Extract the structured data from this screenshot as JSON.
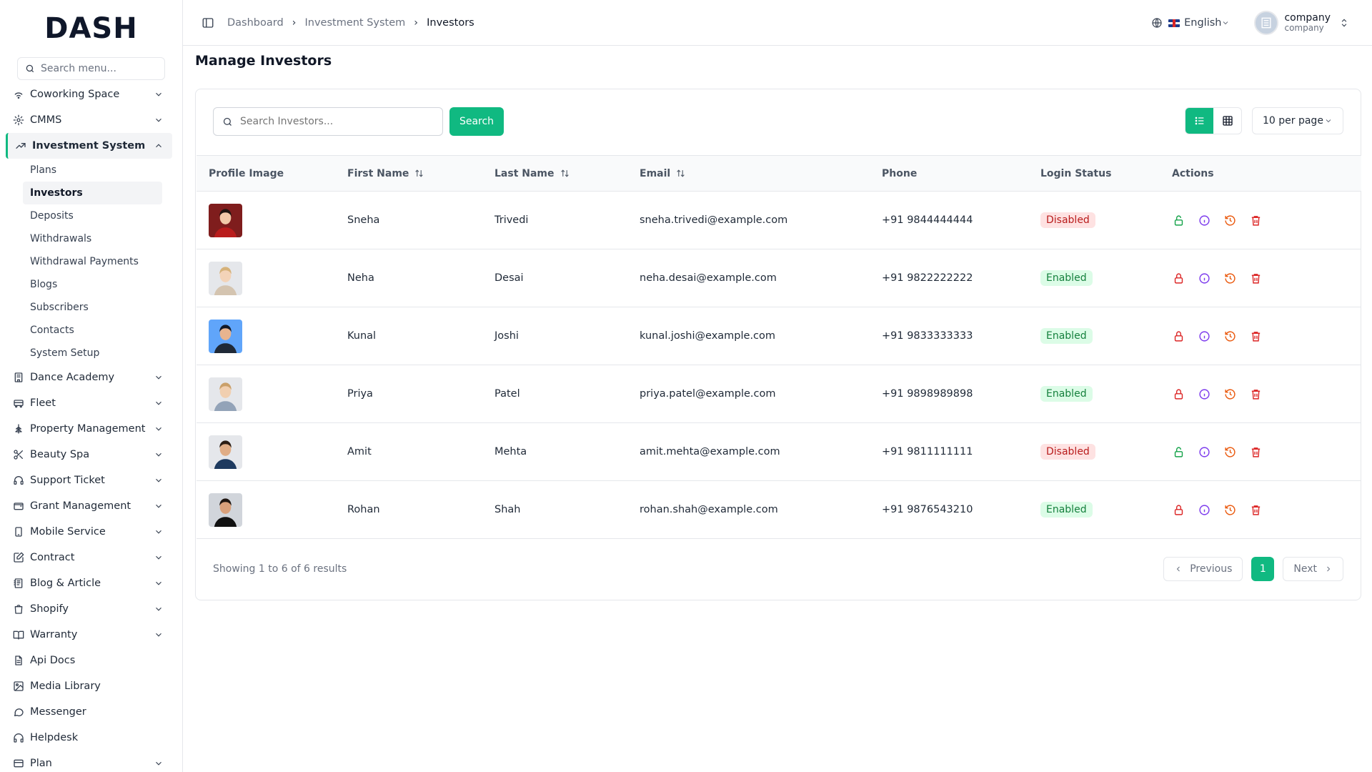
{
  "brand": {
    "logo_text": "DASH"
  },
  "sidebar": {
    "search_placeholder": "Search menu...",
    "items": [
      {
        "label": "Coworking Space",
        "icon": "wifi-icon",
        "expandable": true
      },
      {
        "label": "CMMS",
        "icon": "gear-icon",
        "expandable": true
      },
      {
        "label": "Investment System",
        "icon": "trending-up-icon",
        "expandable": true,
        "expanded": true
      },
      {
        "label": "Dance Academy",
        "icon": "building-icon",
        "expandable": true
      },
      {
        "label": "Fleet",
        "icon": "bus-icon",
        "expandable": true
      },
      {
        "label": "Property Management",
        "icon": "tree-icon",
        "expandable": true
      },
      {
        "label": "Beauty Spa",
        "icon": "scissors-icon",
        "expandable": true
      },
      {
        "label": "Support Ticket",
        "icon": "headset-icon",
        "expandable": true
      },
      {
        "label": "Grant Management",
        "icon": "wallet-icon",
        "expandable": true
      },
      {
        "label": "Mobile Service",
        "icon": "phone-icon",
        "expandable": true
      },
      {
        "label": "Contract",
        "icon": "pen-square-icon",
        "expandable": true
      },
      {
        "label": "Blog & Article",
        "icon": "notebook-icon",
        "expandable": true
      },
      {
        "label": "Shopify",
        "icon": "shopping-bag-icon",
        "expandable": true
      },
      {
        "label": "Warranty",
        "icon": "book-open-icon",
        "expandable": true
      },
      {
        "label": "Api Docs",
        "icon": "document-icon",
        "expandable": false
      },
      {
        "label": "Media Library",
        "icon": "image-icon",
        "expandable": false
      },
      {
        "label": "Messenger",
        "icon": "chat-icon",
        "expandable": false
      },
      {
        "label": "Helpdesk",
        "icon": "headphones-icon",
        "expandable": false
      },
      {
        "label": "Plan",
        "icon": "card-icon",
        "expandable": true
      }
    ],
    "sub_items": [
      "Plans",
      "Investors",
      "Deposits",
      "Withdrawals",
      "Withdrawal Payments",
      "Blogs",
      "Subscribers",
      "Contacts",
      "System Setup"
    ],
    "active_sub": "Investors"
  },
  "header": {
    "breadcrumbs": [
      "Dashboard",
      "Investment System",
      "Investors"
    ],
    "language": "English",
    "user_name": "company",
    "user_role": "company"
  },
  "page": {
    "title": "Manage Investors",
    "search_placeholder": "Search Investors...",
    "search_button": "Search",
    "per_page": "10 per page",
    "view_mode": "list"
  },
  "table": {
    "columns": [
      "Profile Image",
      "First Name",
      "Last Name",
      "Email",
      "Phone",
      "Login Status",
      "Actions"
    ],
    "sortable": [
      "First Name",
      "Last Name",
      "Email"
    ],
    "rows": [
      {
        "first": "Sneha",
        "last": "Trivedi",
        "email": "sneha.trivedi@example.com",
        "phone": "+91 9844444444",
        "status": "Disabled"
      },
      {
        "first": "Neha",
        "last": "Desai",
        "email": "neha.desai@example.com",
        "phone": "+91 9822222222",
        "status": "Enabled"
      },
      {
        "first": "Kunal",
        "last": "Joshi",
        "email": "kunal.joshi@example.com",
        "phone": "+91 9833333333",
        "status": "Enabled"
      },
      {
        "first": "Priya",
        "last": "Patel",
        "email": "priya.patel@example.com",
        "phone": "+91 9898989898",
        "status": "Enabled"
      },
      {
        "first": "Amit",
        "last": "Mehta",
        "email": "amit.mehta@example.com",
        "phone": "+91 9811111111",
        "status": "Disabled"
      },
      {
        "first": "Rohan",
        "last": "Shah",
        "email": "rohan.shah@example.com",
        "phone": "+91 9876543210",
        "status": "Enabled"
      }
    ]
  },
  "pagination": {
    "summary": "Showing 1 to 6 of 6 results",
    "previous": "Previous",
    "next": "Next",
    "current_page": "1"
  },
  "colors": {
    "accent": "#10b981",
    "enabled_bg": "#dcfce7",
    "enabled_text": "#15803d",
    "disabled_bg": "#fee2e2",
    "disabled_text": "#b91c1c",
    "unlock_icon": "#16a34a",
    "lock_icon": "#dc2626",
    "info_icon": "#7c3aed",
    "history_icon": "#ea580c",
    "delete_icon": "#dc2626"
  }
}
